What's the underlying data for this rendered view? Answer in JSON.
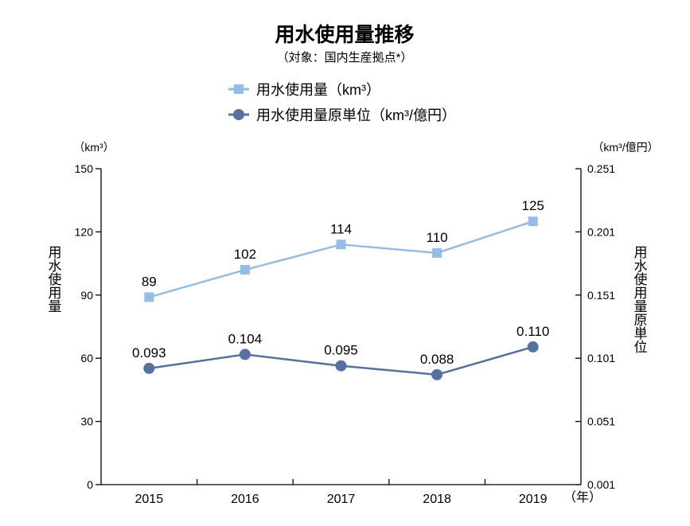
{
  "chart_data": {
    "type": "line",
    "title": "用水使用量推移",
    "subtitle": "（対象：国内生産拠点*）",
    "categories": [
      "2015",
      "2016",
      "2017",
      "2018",
      "2019"
    ],
    "x_unit": "（年）",
    "series": [
      {
        "name": "用水使用量（km³）",
        "axis": "left",
        "marker": "square",
        "color": "#93bde6",
        "values": [
          89,
          102,
          114,
          110,
          125
        ],
        "labels": [
          "89",
          "102",
          "114",
          "110",
          "125"
        ]
      },
      {
        "name": "用水使用量原単位（km³/億円）",
        "axis": "right",
        "marker": "circle",
        "color": "#56709f",
        "values": [
          0.093,
          0.104,
          0.095,
          0.088,
          0.11
        ],
        "labels": [
          "0.093",
          "0.104",
          "0.095",
          "0.088",
          "0.110"
        ]
      }
    ],
    "left_axis": {
      "unit": "（km³）",
      "label": "用水使用量",
      "ylim": [
        0,
        150
      ],
      "ticks": [
        "0",
        "30",
        "60",
        "90",
        "120",
        "150"
      ]
    },
    "right_axis": {
      "unit": "（km³/億円）",
      "label": "用水使用量原単位",
      "ylim": [
        0.001,
        0.251
      ],
      "ticks": [
        "0.001",
        "0.051",
        "0.101",
        "0.151",
        "0.201",
        "0.251"
      ]
    },
    "grid": false,
    "legend_position": "top-center"
  }
}
